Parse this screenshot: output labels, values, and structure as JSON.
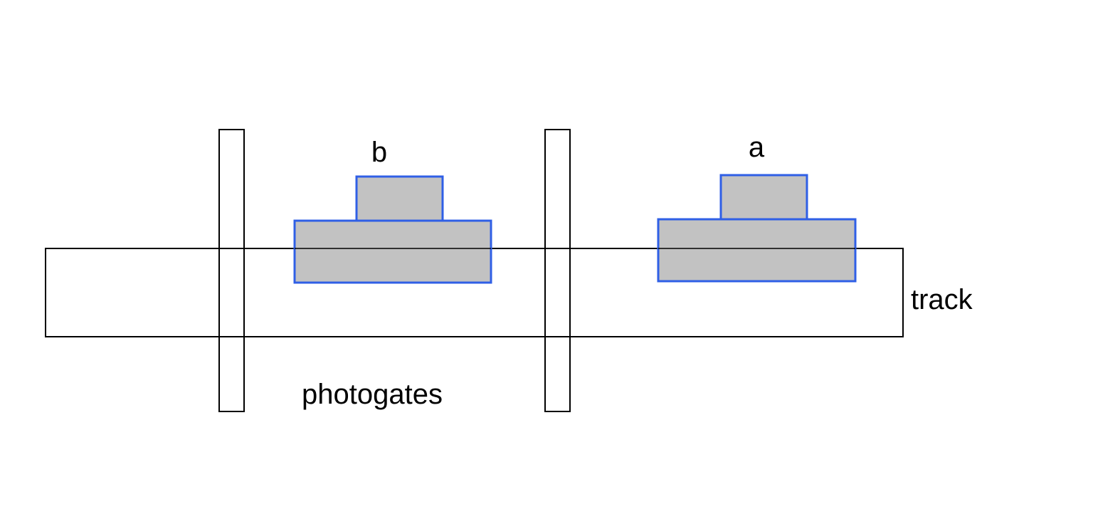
{
  "labels": {
    "cart_b": "b",
    "cart_a": "a",
    "track": "track",
    "photogates": "photogates"
  },
  "colors": {
    "cart_fill": "#c2c2c2",
    "cart_stroke": "#2f5fe6",
    "outline": "#000000",
    "background": "#ffffff"
  }
}
